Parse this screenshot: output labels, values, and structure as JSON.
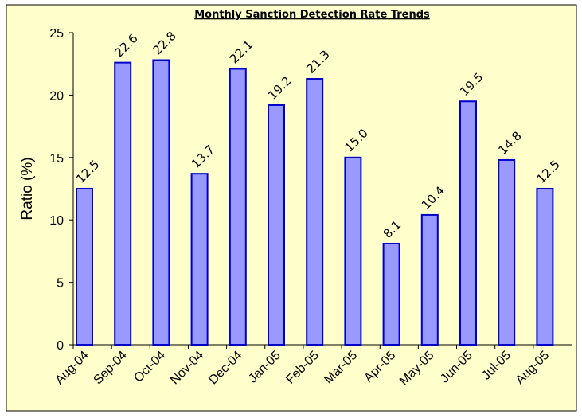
{
  "chart_data": {
    "type": "bar",
    "title": "Monthly Sanction Detection Rate Trends",
    "y_label": "Ratio (%)",
    "categories": [
      "Aug-04",
      "Sep-04",
      "Oct-04",
      "Nov-04",
      "Dec-04",
      "Jan-05",
      "Feb-05",
      "Mar-05",
      "Apr-05",
      "May-05",
      "Jun-05",
      "Jul-05",
      "Aug-05"
    ],
    "values": [
      12.5,
      22.6,
      22.8,
      13.7,
      22.1,
      19.2,
      21.3,
      15.0,
      8.1,
      10.4,
      19.5,
      14.8,
      12.5
    ],
    "value_labels": [
      "12.5",
      "22.6",
      "22.8",
      "13.7",
      "22.1",
      "19.2",
      "21.3",
      "15.0",
      "8.1",
      "10.4",
      "19.5",
      "14.8",
      "12.5"
    ],
    "color": "#9999ff",
    "edge_color": "#0000cc",
    "ylim": [
      0,
      25
    ],
    "yticks": [
      0,
      5,
      10,
      15,
      20,
      25
    ],
    "grid": false
  }
}
